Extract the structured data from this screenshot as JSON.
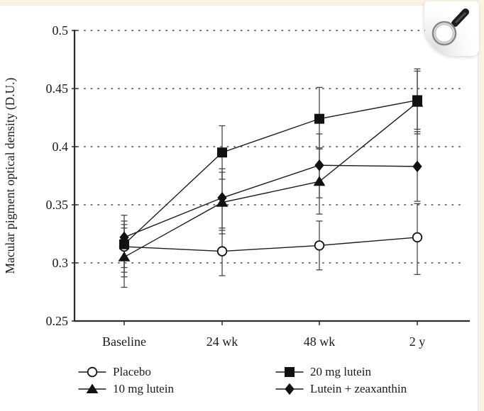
{
  "frame": {
    "strip_color": "#faf3e3",
    "background": "#ffffff"
  },
  "icons": {
    "zoom_button": "magnifier-icon",
    "legend_markers": [
      "open-circle-marker-icon",
      "filled-triangle-marker-icon",
      "filled-square-marker-icon",
      "filled-diamond-marker-icon"
    ]
  },
  "chart_data": {
    "type": "line",
    "title": "",
    "xlabel": "",
    "ylabel": "Macular pigment optical density (D.U.)",
    "categories": [
      "Baseline",
      "24 wk",
      "48 wk",
      "2 y"
    ],
    "ylim": [
      0.25,
      0.5
    ],
    "yticks": [
      0.25,
      0.3,
      0.35,
      0.4,
      0.45,
      0.5
    ],
    "ytick_labels": [
      "0.25",
      "0.3",
      "0.35",
      "0.4",
      "0.45",
      "0.5"
    ],
    "grid": "dotted-horizontal",
    "legend_position": "bottom",
    "error_bars": true,
    "line_color": "#1c1c1c",
    "series": [
      {
        "name": "Placebo",
        "marker": "circle-open",
        "values": [
          0.314,
          0.31,
          0.315,
          0.322
        ],
        "err_low": [
          0.288,
          0.289,
          0.294,
          0.29
        ],
        "err_high": [
          0.333,
          0.328,
          0.336,
          0.351
        ]
      },
      {
        "name": "10 mg lutein",
        "marker": "triangle-filled",
        "values": [
          0.305,
          0.352,
          0.37,
          0.438
        ],
        "err_low": [
          0.279,
          0.325,
          0.342,
          0.411
        ],
        "err_high": [
          0.33,
          0.378,
          0.399,
          0.465
        ]
      },
      {
        "name": "20 mg lutein",
        "marker": "square-filled",
        "values": [
          0.316,
          0.395,
          0.424,
          0.44
        ],
        "err_low": [
          0.292,
          0.372,
          0.398,
          0.415
        ],
        "err_high": [
          0.336,
          0.418,
          0.451,
          0.467
        ]
      },
      {
        "name": "Lutein + zeaxanthin",
        "marker": "diamond-filled",
        "values": [
          0.322,
          0.356,
          0.384,
          0.383
        ],
        "err_low": [
          0.296,
          0.33,
          0.356,
          0.353
        ],
        "err_high": [
          0.341,
          0.381,
          0.411,
          0.413
        ]
      }
    ]
  }
}
